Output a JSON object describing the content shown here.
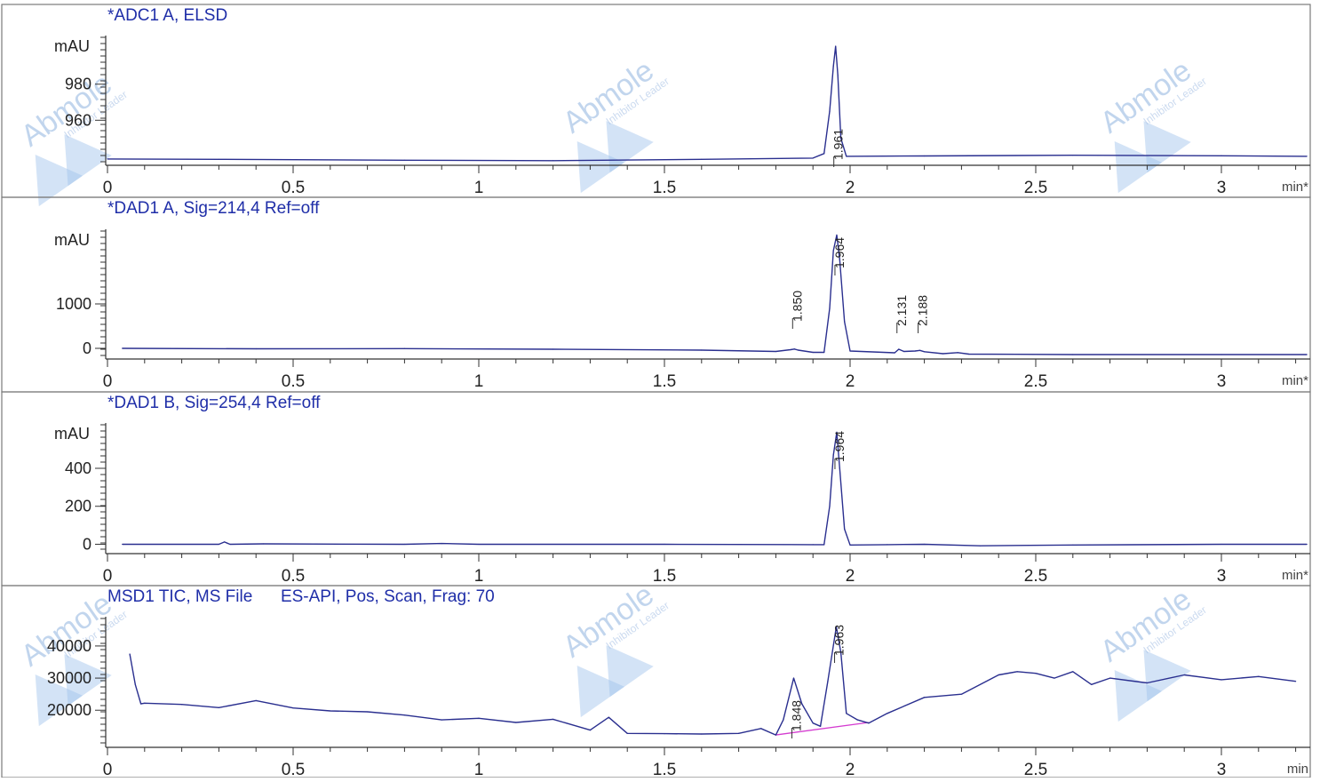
{
  "chart_data": [
    {
      "type": "line",
      "title": "*ADC1 A, ELSD",
      "ylabel": "mAU",
      "xlabel": "min*",
      "xlim": [
        0,
        3.23
      ],
      "ylim": [
        936,
        1005
      ],
      "yticks": [
        960,
        980
      ],
      "xticks": [
        "0",
        "0.5",
        "1",
        "1.5",
        "2",
        "2.5",
        "3"
      ],
      "series": [
        {
          "x": [
            0,
            0.3,
            0.8,
            1.2,
            1.6,
            1.9,
            1.93,
            1.945,
            1.955,
            1.961,
            1.967,
            1.975,
            1.99,
            2.2,
            2.6,
            3.0,
            3.23
          ],
          "y": [
            938.5,
            938.3,
            937.8,
            937.6,
            938.3,
            939.0,
            941.5,
            965,
            990,
            1001,
            985,
            950,
            940,
            940.2,
            940.6,
            940.3,
            940.0
          ]
        }
      ],
      "peaks": [
        {
          "rt": "1.961",
          "x": 1.961
        }
      ]
    },
    {
      "type": "line",
      "title": "*DAD1 A, Sig=214,4 Ref=off",
      "ylabel": "mAU",
      "xlabel": "min*",
      "xlim": [
        0,
        3.23
      ],
      "ylim": [
        -200,
        2600
      ],
      "yticks": [
        0,
        1000
      ],
      "xticks": [
        "0",
        "0.5",
        "1",
        "1.5",
        "2",
        "2.5",
        "3"
      ],
      "series": [
        {
          "x": [
            0.04,
            0.4,
            0.8,
            1.2,
            1.6,
            1.8,
            1.84,
            1.85,
            1.86,
            1.9,
            1.93,
            1.945,
            1.955,
            1.964,
            1.972,
            1.985,
            2.0,
            2.12,
            2.131,
            2.145,
            2.175,
            2.188,
            2.2,
            2.25,
            2.29,
            2.32,
            2.6,
            3.0,
            3.23
          ],
          "y": [
            0,
            -10,
            -5,
            -20,
            -40,
            -70,
            -30,
            -15,
            -40,
            -90,
            -90,
            900,
            2200,
            2550,
            2000,
            600,
            -60,
            -100,
            -20,
            -70,
            -60,
            -45,
            -75,
            -120,
            -95,
            -130,
            -140,
            -140,
            -140
          ]
        }
      ],
      "peaks": [
        {
          "rt": "1.850",
          "x": 1.85
        },
        {
          "rt": "1.964",
          "x": 1.964
        },
        {
          "rt": "2.131",
          "x": 2.131
        },
        {
          "rt": "2.188",
          "x": 2.188
        }
      ]
    },
    {
      "type": "line",
      "title": "*DAD1 B, Sig=254,4 Ref=off",
      "ylabel": "mAU",
      "xlabel": "min*",
      "xlim": [
        0,
        3.23
      ],
      "ylim": [
        -40,
        620
      ],
      "yticks": [
        0,
        200,
        400
      ],
      "xticks": [
        "0",
        "0.5",
        "1",
        "1.5",
        "2",
        "2.5",
        "3"
      ],
      "series": [
        {
          "x": [
            0.04,
            0.3,
            0.315,
            0.33,
            0.42,
            0.8,
            0.9,
            1.0,
            1.5,
            1.9,
            1.93,
            1.945,
            1.955,
            1.964,
            1.972,
            1.985,
            2.0,
            2.1,
            2.2,
            2.35,
            2.6,
            3.0,
            3.23
          ],
          "y": [
            0,
            0,
            12,
            0,
            2,
            0,
            4,
            0,
            0,
            -2,
            -2,
            200,
            470,
            590,
            400,
            80,
            -4,
            -2,
            0,
            -8,
            -4,
            0,
            0
          ]
        }
      ],
      "peaks": [
        {
          "rt": "1.964",
          "x": 1.964
        }
      ]
    },
    {
      "type": "line",
      "title": "MSD1 TIC, MS File      ES-API, Pos, Scan, Frag: 70",
      "ylabel": "",
      "xlabel": "min",
      "xlim": [
        0,
        3.23
      ],
      "ylim": [
        9000,
        48000
      ],
      "yticks": [
        20000,
        30000,
        40000
      ],
      "xticks": [
        "0",
        "0.5",
        "1",
        "1.5",
        "2",
        "2.5",
        "3"
      ],
      "series": [
        {
          "x": [
            0.06,
            0.075,
            0.09,
            0.1,
            0.2,
            0.3,
            0.4,
            0.5,
            0.6,
            0.7,
            0.8,
            0.9,
            1.0,
            1.1,
            1.2,
            1.3,
            1.35,
            1.4,
            1.5,
            1.6,
            1.7,
            1.76,
            1.8,
            1.82,
            1.848,
            1.87,
            1.9,
            1.92,
            1.94,
            1.963,
            1.975,
            1.99,
            2.02,
            2.05,
            2.1,
            2.2,
            2.3,
            2.4,
            2.45,
            2.5,
            2.55,
            2.6,
            2.65,
            2.7,
            2.8,
            2.9,
            3.0,
            3.1,
            3.2
          ],
          "y": [
            37500,
            28000,
            22000,
            22200,
            21800,
            20800,
            23000,
            20700,
            19800,
            19500,
            18500,
            17000,
            17500,
            16200,
            17200,
            13800,
            17800,
            12800,
            12700,
            12600,
            12800,
            14300,
            12300,
            17000,
            30000,
            22000,
            16000,
            15000,
            29000,
            46000,
            38000,
            19000,
            17000,
            16000,
            19000,
            24000,
            25000,
            31000,
            32000,
            31500,
            30000,
            32000,
            28000,
            30000,
            28500,
            31000,
            29500,
            30500,
            29000
          ]
        }
      ],
      "baseline": {
        "x": [
          1.8,
          2.05
        ],
        "y": [
          12300,
          16200
        ]
      },
      "peaks": [
        {
          "rt": "1.848",
          "x": 1.848
        },
        {
          "rt": "1.963",
          "x": 1.963
        }
      ]
    }
  ],
  "watermark": {
    "brand": "Abmole",
    "tagline": "Inhibitor Leader"
  }
}
